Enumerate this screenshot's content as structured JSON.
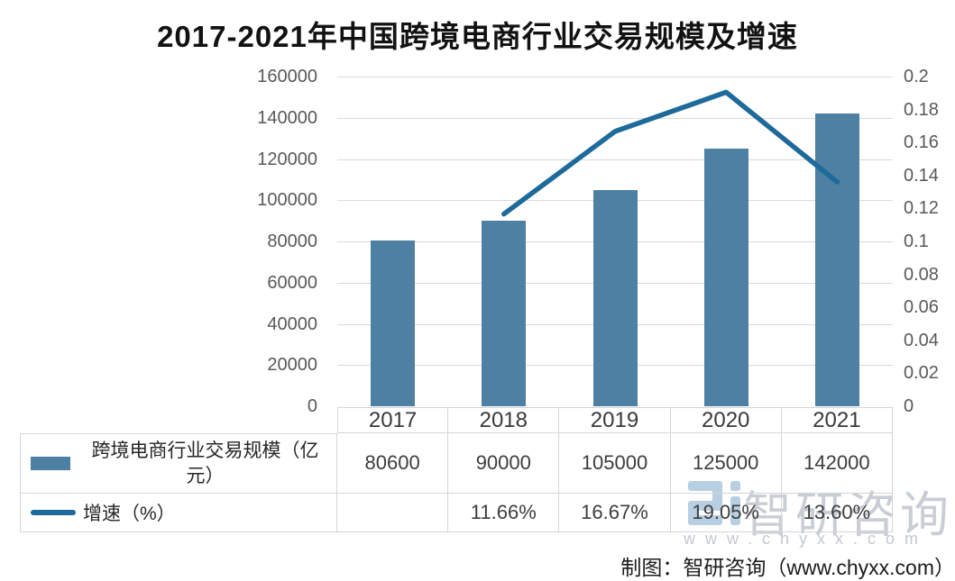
{
  "title": "2017-2021年中国跨境电商行业交易规模及增速",
  "chart_data": {
    "type": "bar",
    "subtype": "combo bar+line, dual axis, with data table",
    "title": "2017-2021年中国跨境电商行业交易规模及增速",
    "categories": [
      "2017",
      "2018",
      "2019",
      "2020",
      "2021"
    ],
    "series": [
      {
        "name": "跨境电商行业交易规模（亿元）",
        "type": "bar",
        "axis": "left",
        "color": "#4d80a2",
        "values": [
          80600,
          90000,
          105000,
          125000,
          142000
        ]
      },
      {
        "name": "增速（%）",
        "type": "line",
        "axis": "right",
        "color": "#1d6a9b",
        "values": [
          null,
          0.1166,
          0.1667,
          0.1905,
          0.136
        ]
      }
    ],
    "left_axis": {
      "min": 0,
      "max": 160000,
      "tick_labels": [
        "0",
        "20000",
        "40000",
        "60000",
        "80000",
        "100000",
        "120000",
        "140000",
        "160000"
      ]
    },
    "right_axis": {
      "min": 0,
      "max": 0.2,
      "tick_labels": [
        "0",
        "0.02",
        "0.04",
        "0.06",
        "0.08",
        "0.1",
        "0.12",
        "0.14",
        "0.16",
        "0.18",
        "0.2"
      ]
    },
    "grid": true,
    "legend_position": "left column of data table"
  },
  "table": {
    "years": [
      "2017",
      "2018",
      "2019",
      "2020",
      "2021"
    ],
    "scale_row": {
      "label": "跨境电商行业交易规模（亿元）",
      "values": [
        "80600",
        "90000",
        "105000",
        "125000",
        "142000"
      ]
    },
    "growth_row": {
      "label": "增速（%）",
      "values": [
        "",
        "11.66%",
        "16.67%",
        "19.05%",
        "13.60%"
      ]
    }
  },
  "footer": {
    "credit": "制图：智研咨询（www.chyxx.com）"
  },
  "watermark": {
    "brand": "智研咨询",
    "url": "www.chyxx.com"
  }
}
